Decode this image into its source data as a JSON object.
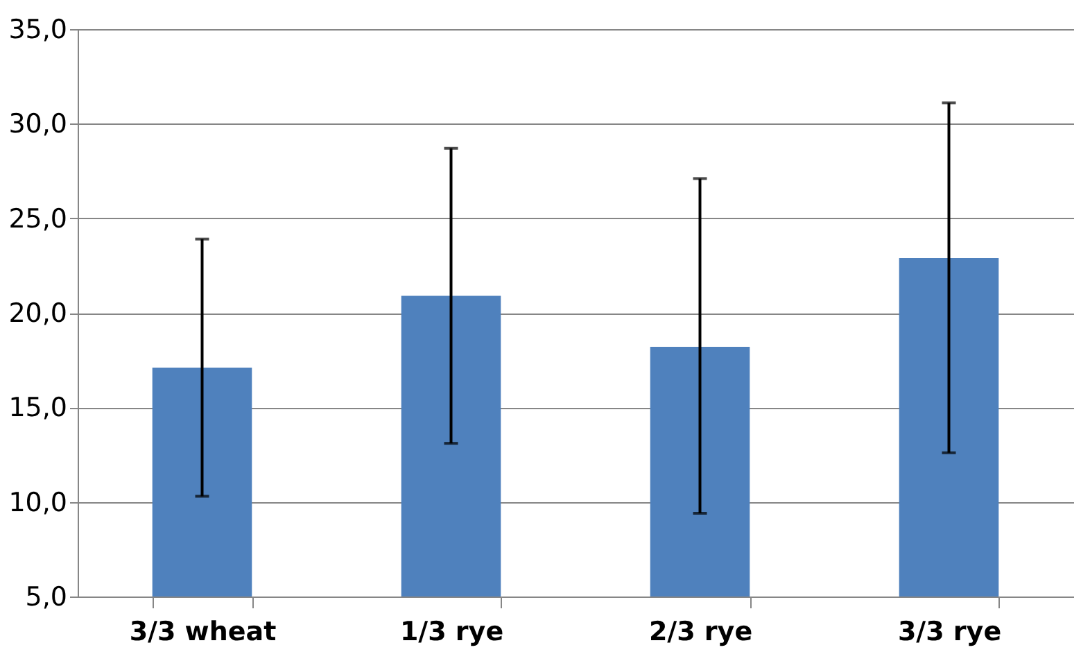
{
  "chart_data": {
    "type": "bar",
    "categories": [
      "3/3 wheat",
      "1/3 rye",
      "2/3 rye",
      "3/3 rye"
    ],
    "series": [
      {
        "color": "#4f81bd",
        "values": [
          17.1,
          20.9,
          18.2,
          22.9
        ],
        "errors": [
          [
            10.3,
            23.9
          ],
          [
            13.1,
            28.7
          ],
          [
            9.4,
            27.1
          ],
          [
            12.6,
            31.1
          ]
        ]
      }
    ],
    "ylim": [
      5,
      35
    ],
    "yticks": [
      {
        "value": 5,
        "label": "5,0"
      },
      {
        "value": 10,
        "label": "10,0"
      },
      {
        "value": 15,
        "label": "15,0"
      },
      {
        "value": 20,
        "label": "20,0"
      },
      {
        "value": 25,
        "label": "25,0"
      },
      {
        "value": 30,
        "label": "30,0"
      },
      {
        "value": 35,
        "label": "35,0"
      }
    ],
    "grid": "y"
  }
}
